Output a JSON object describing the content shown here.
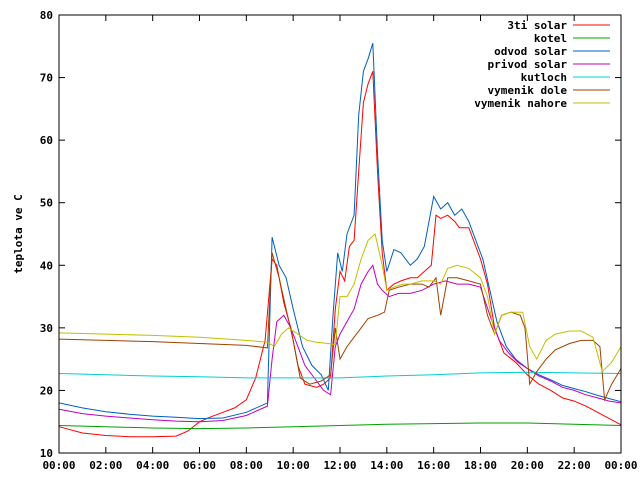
{
  "chart_data": {
    "type": "line",
    "xlabel": "",
    "ylabel": "teplota ve C",
    "xlim": [
      "00:00",
      "24:00"
    ],
    "ylim": [
      10,
      80
    ],
    "x_ticks": [
      "00:00",
      "02:00",
      "04:00",
      "06:00",
      "08:00",
      "10:00",
      "12:00",
      "14:00",
      "16:00",
      "18:00",
      "20:00",
      "22:00",
      "00:00"
    ],
    "y_ticks": [
      10,
      20,
      30,
      40,
      50,
      60,
      70,
      80
    ],
    "grid": false,
    "legend_position": "top-right",
    "x_unit": "hours",
    "series": [
      {
        "name": "3ti solar",
        "color": "#ff0000",
        "points": [
          [
            0,
            14.2
          ],
          [
            1,
            13.2
          ],
          [
            2,
            12.8
          ],
          [
            3,
            12.6
          ],
          [
            4,
            12.6
          ],
          [
            5,
            12.7
          ],
          [
            5.5,
            13.5
          ],
          [
            6,
            15
          ],
          [
            6.5,
            15.8
          ],
          [
            7,
            16.5
          ],
          [
            7.5,
            17.2
          ],
          [
            8,
            18.5
          ],
          [
            8.4,
            22
          ],
          [
            8.8,
            28
          ],
          [
            9.1,
            41
          ],
          [
            9.3,
            40
          ],
          [
            9.6,
            34
          ],
          [
            9.9,
            30
          ],
          [
            10.2,
            24
          ],
          [
            10.5,
            21
          ],
          [
            11,
            20.5
          ],
          [
            11.3,
            21
          ],
          [
            11.6,
            22
          ],
          [
            11.8,
            33
          ],
          [
            12,
            39
          ],
          [
            12.2,
            37.5
          ],
          [
            12.4,
            43
          ],
          [
            12.6,
            44
          ],
          [
            12.8,
            55
          ],
          [
            13,
            66
          ],
          [
            13.2,
            69
          ],
          [
            13.4,
            71
          ],
          [
            13.6,
            55
          ],
          [
            13.8,
            42
          ],
          [
            14,
            36
          ],
          [
            14.3,
            37
          ],
          [
            14.6,
            37.5
          ],
          [
            15,
            38
          ],
          [
            15.3,
            38
          ],
          [
            15.6,
            39
          ],
          [
            15.9,
            40
          ],
          [
            16.1,
            48
          ],
          [
            16.3,
            47.5
          ],
          [
            16.6,
            48
          ],
          [
            16.9,
            47
          ],
          [
            17.1,
            46
          ],
          [
            17.5,
            46
          ],
          [
            17.8,
            43
          ],
          [
            18,
            41
          ],
          [
            18.3,
            37
          ],
          [
            18.6,
            30
          ],
          [
            19,
            26
          ],
          [
            19.5,
            24.5
          ],
          [
            20,
            22.5
          ],
          [
            20.5,
            21
          ],
          [
            21,
            20
          ],
          [
            21.5,
            18.8
          ],
          [
            22,
            18.3
          ],
          [
            22.5,
            17.5
          ],
          [
            23,
            16.5
          ],
          [
            23.5,
            15.5
          ],
          [
            24,
            14.5
          ]
        ]
      },
      {
        "name": "kotel",
        "color": "#00a000",
        "points": [
          [
            0,
            14.4
          ],
          [
            2,
            14.2
          ],
          [
            4,
            14
          ],
          [
            6,
            13.9
          ],
          [
            8,
            14
          ],
          [
            10,
            14.2
          ],
          [
            12,
            14.4
          ],
          [
            14,
            14.6
          ],
          [
            16,
            14.7
          ],
          [
            18,
            14.8
          ],
          [
            20,
            14.8
          ],
          [
            22,
            14.6
          ],
          [
            24,
            14.4
          ]
        ]
      },
      {
        "name": "odvod solar",
        "color": "#0060c0",
        "points": [
          [
            0,
            18
          ],
          [
            1,
            17.2
          ],
          [
            2,
            16.6
          ],
          [
            3,
            16.2
          ],
          [
            4,
            15.9
          ],
          [
            5,
            15.7
          ],
          [
            6,
            15.5
          ],
          [
            7,
            15.6
          ],
          [
            8,
            16.5
          ],
          [
            8.9,
            18
          ],
          [
            9.1,
            44.5
          ],
          [
            9.4,
            40
          ],
          [
            9.7,
            38
          ],
          [
            10,
            33
          ],
          [
            10.4,
            27
          ],
          [
            10.8,
            24
          ],
          [
            11.2,
            22.5
          ],
          [
            11.5,
            20
          ],
          [
            11.7,
            32
          ],
          [
            11.9,
            42
          ],
          [
            12.1,
            39
          ],
          [
            12.3,
            45
          ],
          [
            12.6,
            48
          ],
          [
            12.8,
            64
          ],
          [
            13,
            71
          ],
          [
            13.2,
            73
          ],
          [
            13.4,
            75.5
          ],
          [
            13.6,
            58
          ],
          [
            13.8,
            44
          ],
          [
            14,
            39
          ],
          [
            14.3,
            42.5
          ],
          [
            14.6,
            42
          ],
          [
            15,
            40
          ],
          [
            15.3,
            41
          ],
          [
            15.6,
            43
          ],
          [
            16,
            51
          ],
          [
            16.3,
            49
          ],
          [
            16.6,
            50
          ],
          [
            16.9,
            48
          ],
          [
            17.2,
            49
          ],
          [
            17.5,
            47
          ],
          [
            17.8,
            44
          ],
          [
            18.1,
            41
          ],
          [
            18.4,
            36
          ],
          [
            18.7,
            31
          ],
          [
            19.1,
            27
          ],
          [
            19.5,
            25
          ],
          [
            20,
            23.5
          ],
          [
            20.5,
            22.5
          ],
          [
            21,
            21.7
          ],
          [
            21.5,
            20.8
          ],
          [
            22,
            20.3
          ],
          [
            22.5,
            19.8
          ],
          [
            23,
            19.2
          ],
          [
            23.5,
            18.7
          ],
          [
            24,
            18.2
          ]
        ]
      },
      {
        "name": "privod solar",
        "color": "#c000c0",
        "points": [
          [
            0,
            17
          ],
          [
            1,
            16.3
          ],
          [
            2,
            15.9
          ],
          [
            3,
            15.6
          ],
          [
            4,
            15.3
          ],
          [
            5,
            15.1
          ],
          [
            6,
            15
          ],
          [
            7,
            15.2
          ],
          [
            8,
            16
          ],
          [
            8.9,
            17.5
          ],
          [
            9.1,
            25
          ],
          [
            9.3,
            31
          ],
          [
            9.6,
            32
          ],
          [
            9.9,
            30
          ],
          [
            10.2,
            27
          ],
          [
            10.5,
            24
          ],
          [
            11,
            21.5
          ],
          [
            11.3,
            20
          ],
          [
            11.6,
            19.3
          ],
          [
            11.8,
            27
          ],
          [
            12,
            29
          ],
          [
            12.3,
            31
          ],
          [
            12.6,
            33
          ],
          [
            12.9,
            37
          ],
          [
            13.2,
            39
          ],
          [
            13.4,
            40
          ],
          [
            13.6,
            37
          ],
          [
            13.8,
            36
          ],
          [
            14.1,
            35
          ],
          [
            14.5,
            35.5
          ],
          [
            15,
            35.5
          ],
          [
            15.5,
            36
          ],
          [
            16,
            37
          ],
          [
            16.5,
            37.5
          ],
          [
            17,
            37
          ],
          [
            17.5,
            37
          ],
          [
            18,
            36.5
          ],
          [
            18.4,
            32
          ],
          [
            18.8,
            28
          ],
          [
            19.2,
            26
          ],
          [
            19.6,
            24.5
          ],
          [
            20,
            23.5
          ],
          [
            20.5,
            22.3
          ],
          [
            21,
            21.5
          ],
          [
            21.5,
            20.5
          ],
          [
            22,
            20
          ],
          [
            22.5,
            19.3
          ],
          [
            23,
            18.8
          ],
          [
            23.5,
            18.3
          ],
          [
            24,
            18
          ]
        ]
      },
      {
        "name": "kutloch",
        "color": "#00d0d0",
        "points": [
          [
            0,
            22.7
          ],
          [
            2,
            22.5
          ],
          [
            4,
            22.3
          ],
          [
            6,
            22.2
          ],
          [
            8,
            22
          ],
          [
            10,
            22
          ],
          [
            12,
            22
          ],
          [
            14,
            22.3
          ],
          [
            16,
            22.5
          ],
          [
            18,
            22.8
          ],
          [
            20,
            22.9
          ],
          [
            22,
            22.8
          ],
          [
            24,
            22.7
          ]
        ]
      },
      {
        "name": "vymenik dole",
        "color": "#a04000",
        "points": [
          [
            0,
            28.2
          ],
          [
            2,
            28
          ],
          [
            4,
            27.8
          ],
          [
            6,
            27.5
          ],
          [
            8,
            27.2
          ],
          [
            8.9,
            26.8
          ],
          [
            9.1,
            42
          ],
          [
            9.4,
            38
          ],
          [
            9.7,
            33
          ],
          [
            10,
            28
          ],
          [
            10.3,
            22
          ],
          [
            10.7,
            21
          ],
          [
            11.2,
            21.5
          ],
          [
            11.6,
            22.5
          ],
          [
            11.8,
            30
          ],
          [
            12,
            25
          ],
          [
            12.3,
            27
          ],
          [
            12.6,
            28.5
          ],
          [
            12.9,
            30
          ],
          [
            13.2,
            31.5
          ],
          [
            13.6,
            32
          ],
          [
            13.9,
            32.5
          ],
          [
            14.1,
            36
          ],
          [
            14.5,
            36.5
          ],
          [
            15,
            37
          ],
          [
            15.5,
            37
          ],
          [
            15.8,
            36.5
          ],
          [
            16.1,
            38
          ],
          [
            16.3,
            32
          ],
          [
            16.6,
            38
          ],
          [
            17,
            38
          ],
          [
            17.5,
            37.5
          ],
          [
            18,
            37
          ],
          [
            18.3,
            32
          ],
          [
            18.6,
            29
          ],
          [
            18.9,
            32
          ],
          [
            19.3,
            32.5
          ],
          [
            19.7,
            32
          ],
          [
            19.9,
            30
          ],
          [
            20.1,
            21
          ],
          [
            20.4,
            23
          ],
          [
            20.8,
            25
          ],
          [
            21.2,
            26.5
          ],
          [
            21.8,
            27.5
          ],
          [
            22.3,
            28
          ],
          [
            22.8,
            28
          ],
          [
            23.1,
            27
          ],
          [
            23.3,
            18.5
          ],
          [
            23.6,
            21
          ],
          [
            24,
            23.5
          ]
        ]
      },
      {
        "name": "vymenik nahore",
        "color": "#c0c000",
        "points": [
          [
            0,
            29.2
          ],
          [
            2,
            29
          ],
          [
            4,
            28.8
          ],
          [
            6,
            28.5
          ],
          [
            8,
            28
          ],
          [
            8.9,
            27.7
          ],
          [
            9.2,
            27
          ],
          [
            9.5,
            29
          ],
          [
            9.8,
            30
          ],
          [
            10.2,
            29
          ],
          [
            10.6,
            28
          ],
          [
            11,
            27.7
          ],
          [
            11.5,
            27.5
          ],
          [
            11.8,
            27.3
          ],
          [
            12,
            35
          ],
          [
            12.3,
            35
          ],
          [
            12.6,
            37
          ],
          [
            12.9,
            41
          ],
          [
            13.2,
            44
          ],
          [
            13.5,
            45
          ],
          [
            13.8,
            40
          ],
          [
            14,
            36
          ],
          [
            14.3,
            36.5
          ],
          [
            14.7,
            37
          ],
          [
            15,
            37
          ],
          [
            15.5,
            37.5
          ],
          [
            16,
            37.5
          ],
          [
            16.3,
            37
          ],
          [
            16.6,
            39.5
          ],
          [
            17,
            40
          ],
          [
            17.5,
            39.5
          ],
          [
            18,
            38
          ],
          [
            18.3,
            35
          ],
          [
            18.6,
            29
          ],
          [
            18.9,
            32
          ],
          [
            19.3,
            32.5
          ],
          [
            19.8,
            32.5
          ],
          [
            20.1,
            27
          ],
          [
            20.4,
            25
          ],
          [
            20.8,
            28
          ],
          [
            21.2,
            29
          ],
          [
            21.8,
            29.5
          ],
          [
            22.3,
            29.5
          ],
          [
            22.8,
            28.5
          ],
          [
            23.2,
            23
          ],
          [
            23.6,
            24.5
          ],
          [
            24,
            27
          ]
        ]
      }
    ]
  }
}
